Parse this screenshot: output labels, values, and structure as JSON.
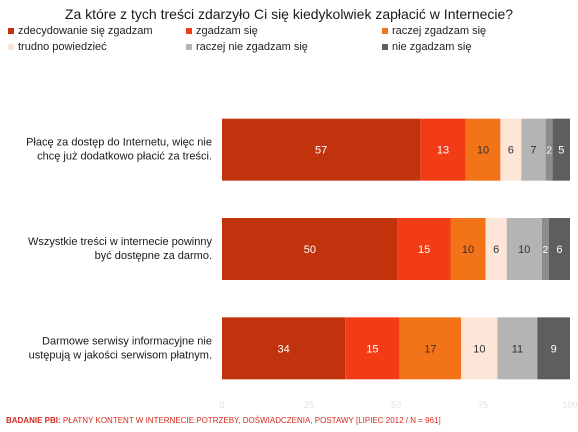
{
  "chart_data": {
    "type": "bar",
    "orientation": "horizontal",
    "stacked": true,
    "title": "Za które z tych treści zdarzyło Ci się kiedykolwiek zapłacić w Internecie?",
    "categories": [
      "Płacę za dostęp do Internetu, więc nie chcę już dodatkowo płacić za treści.",
      "Wszystkie treści w internecie powinny być dostępne za darmo.",
      "Darmowe serwisy informacyjne nie ustępują w jakości serwisom płatnym."
    ],
    "category_lines": [
      [
        "Płacę za dostęp do Internetu, więc nie",
        "chcę już dodatkowo płacić za treści."
      ],
      [
        "Wszystkie treści w internecie powinny",
        "być dostępne za darmo."
      ],
      [
        "Darmowe serwisy informacyjne nie",
        "ustępują w jakości serwisom płatnym."
      ]
    ],
    "series": [
      {
        "name": "zdecydowanie się zgadzam",
        "color": "#c1330d",
        "label_color": "#ffffff",
        "values": [
          57,
          50,
          34
        ]
      },
      {
        "name": "zgadzam się",
        "color": "#f23c16",
        "label_color": "#ffffff",
        "values": [
          13,
          15,
          15
        ]
      },
      {
        "name": "raczej zgadzam się",
        "color": "#f37319",
        "label_color": "#333333",
        "values": [
          10,
          10,
          17
        ]
      },
      {
        "name": "trudno powiedzieć",
        "color": "#fde6d8",
        "label_color": "#333333",
        "values": [
          6,
          6,
          10
        ]
      },
      {
        "name": "raczej nie zgadzam się",
        "color": "#b4b4b4",
        "label_color": "#333333",
        "values": [
          7,
          10,
          11
        ]
      },
      {
        "name": "nie zgadzam się",
        "color": "#5e5e5e",
        "label_color": "#ffffff",
        "values": [
          5,
          6,
          9
        ]
      }
    ],
    "small_segments": [
      {
        "category_index": 0,
        "value": 2,
        "color": "#8c8c8c"
      },
      {
        "category_index": 1,
        "value": 2,
        "color": "#8c8c8c"
      }
    ],
    "xlim": [
      0,
      100
    ],
    "x_ticks": [
      "0",
      "25",
      "50",
      "75",
      "100"
    ],
    "legend_position": "top",
    "grid": false
  },
  "footer": {
    "bold": "BADANIE PBI:",
    "rest": " PŁATNY KONTENT W INTERNECIE:POTRZEBY, DOŚWIADCZENIA, POSTAWY [LIPIEC 2012 / N = 961]"
  }
}
